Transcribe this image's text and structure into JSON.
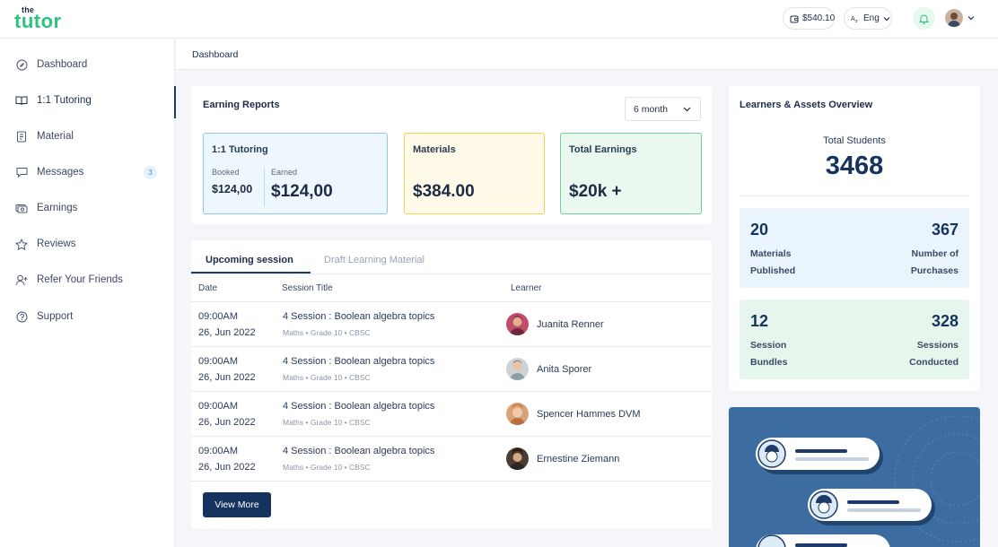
{
  "brand": {
    "small": "the",
    "word": "tutor"
  },
  "topbar": {
    "balance": "$540.10",
    "language": "Eng"
  },
  "sidebar": {
    "items": [
      {
        "label": "Dashboard",
        "icon": "compass-icon"
      },
      {
        "label": "1:1 Tutoring",
        "icon": "book-open-icon"
      },
      {
        "label": "Material",
        "icon": "document-icon"
      },
      {
        "label": "Messages",
        "icon": "chat-icon",
        "badge": "3"
      },
      {
        "label": "Earnings",
        "icon": "money-icon"
      },
      {
        "label": "Reviews",
        "icon": "star-icon"
      },
      {
        "label": "Refer Your Friends",
        "icon": "user-plus-icon"
      },
      {
        "label": "Support",
        "icon": "help-circle-icon"
      }
    ],
    "active_index": 1
  },
  "breadcrumb": "Dashboard",
  "earnings": {
    "title": "Earning Reports",
    "period": "6 month",
    "tutoring": {
      "label": "1:1 Tutoring",
      "booked_label": "Booked",
      "booked_value": "$124,00",
      "earned_label": "Earned",
      "earned_value": "$124,00"
    },
    "materials": {
      "label": "Materials",
      "value": "$384.00"
    },
    "total": {
      "label": "Total Earnings",
      "value": "$20k +"
    }
  },
  "sessions": {
    "tabs": [
      "Upcoming session",
      "Draft Learning Material"
    ],
    "columns": [
      "Date",
      "Session Title",
      "Learner"
    ],
    "rows": [
      {
        "time": "09:00AM",
        "date": "26, Jun 2022",
        "title": "4 Session : Boolean algebra topics",
        "meta": "Maths • Grade 10 • CBSC",
        "learner": "Juanita Renner"
      },
      {
        "time": "09:00AM",
        "date": "26, Jun 2022",
        "title": "4 Session : Boolean algebra topics",
        "meta": "Maths • Grade 10 • CBSC",
        "learner": "Anita Sporer"
      },
      {
        "time": "09:00AM",
        "date": "26, Jun 2022",
        "title": "4 Session : Boolean algebra topics",
        "meta": "Maths • Grade 10 • CBSC",
        "learner": "Spencer Hammes DVM"
      },
      {
        "time": "09:00AM",
        "date": "26, Jun 2022",
        "title": "4 Session : Boolean algebra topics",
        "meta": "Maths • Grade 10 • CBSC",
        "learner": "Ernestine Ziemann"
      }
    ],
    "view_more": "View More"
  },
  "overview": {
    "title": "Learners & Assets Overview",
    "total_students_label": "Total Students",
    "total_students": "3468",
    "materials_published": "20",
    "materials_published_label_1": "Materials",
    "materials_published_label_2": "Published",
    "purchases": "367",
    "purchases_label_1": "Number of",
    "purchases_label_2": "Purchases",
    "session_bundles": "12",
    "session_bundles_label_1": "Session",
    "session_bundles_label_2": "Bundles",
    "sessions_conducted": "328",
    "sessions_conducted_label_1": "Sessions",
    "sessions_conducted_label_2": "Conducted"
  },
  "colors": {
    "brand": "#2bc37f",
    "navy": "#14345f",
    "promo": "#3d6da0"
  }
}
